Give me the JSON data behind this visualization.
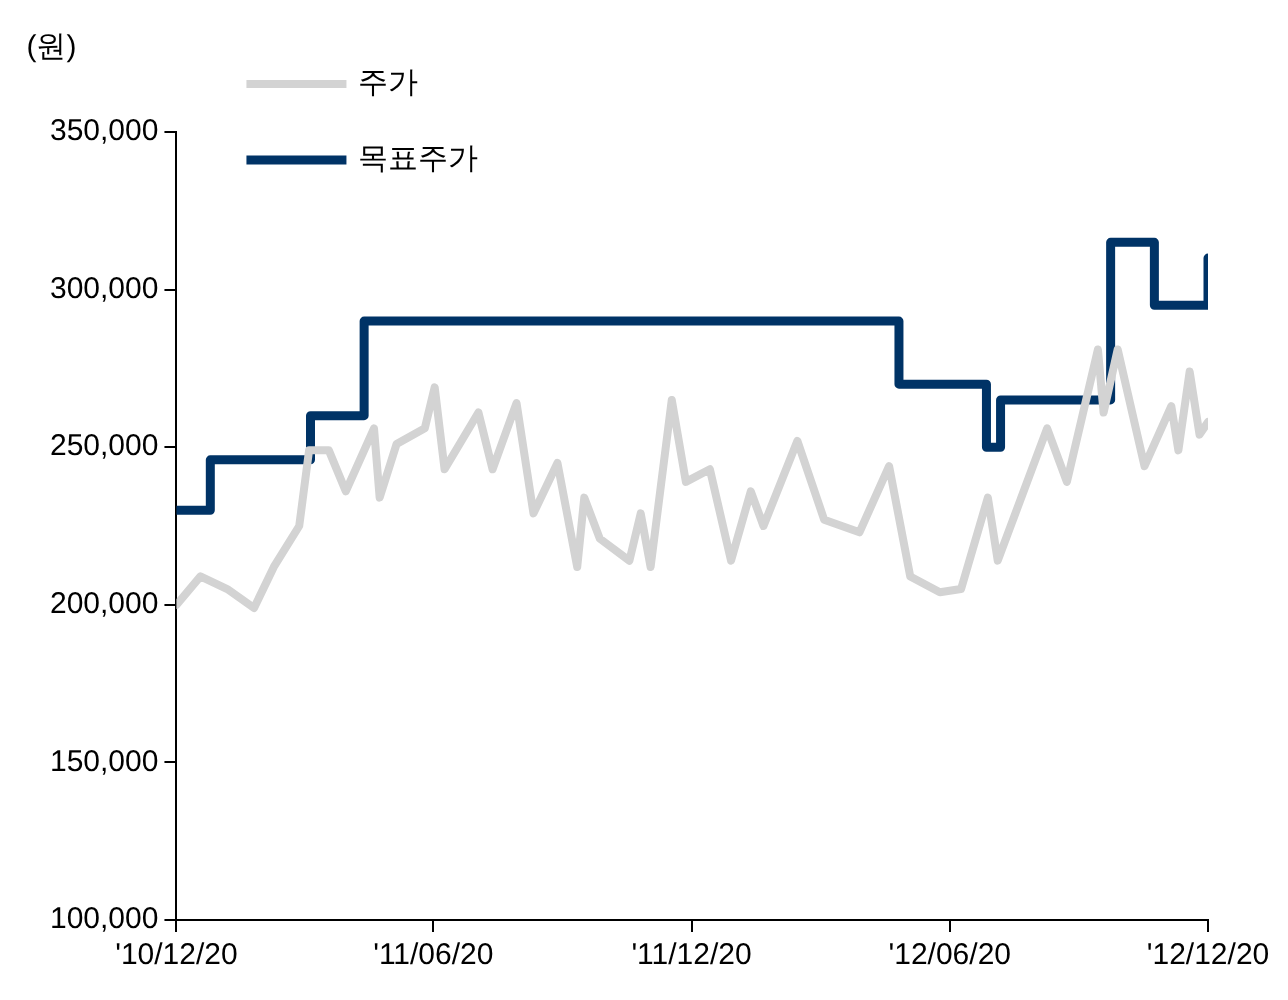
{
  "chart_data": {
    "type": "line",
    "ylabel": "(원)",
    "legend": "top left",
    "grid": false,
    "marker": "none",
    "line_style": "solid",
    "xlim": [
      "2010-12-20",
      "2012-12-20"
    ],
    "xticks": [
      {
        "value": "2010-12-20",
        "label": "'10/12/20"
      },
      {
        "value": "2011-06-20",
        "label": "'11/06/20"
      },
      {
        "value": "2011-12-20",
        "label": "'11/12/20"
      },
      {
        "value": "2012-06-20",
        "label": "'12/06/20"
      },
      {
        "value": "2012-12-20",
        "label": "'12/12/20"
      }
    ],
    "ylim": [
      100000,
      350000
    ],
    "yticks": [
      {
        "value": 100000,
        "label": "100,000"
      },
      {
        "value": 150000,
        "label": "150,000"
      },
      {
        "value": 200000,
        "label": "200,000"
      },
      {
        "value": 250000,
        "label": "250,000"
      },
      {
        "value": 300000,
        "label": "300,000"
      },
      {
        "value": 350000,
        "label": "350,000"
      }
    ],
    "series": [
      {
        "name": "주가",
        "type": "line",
        "color": "#d3d3d3",
        "x": [
          "2010-12-20",
          "2011-01-06",
          "2011-01-25",
          "2011-02-13",
          "2011-02-27",
          "2011-03-17",
          "2011-03-24",
          "2011-04-07",
          "2011-04-19",
          "2011-05-09",
          "2011-05-13",
          "2011-05-25",
          "2011-06-14",
          "2011-06-21",
          "2011-06-28",
          "2011-07-22",
          "2011-08-01",
          "2011-08-18",
          "2011-08-30",
          "2011-09-16",
          "2011-09-30",
          "2011-10-05",
          "2011-10-16",
          "2011-11-06",
          "2011-11-14",
          "2011-11-21",
          "2011-12-06",
          "2011-12-16",
          "2012-01-02",
          "2012-01-17",
          "2012-01-31",
          "2012-02-09",
          "2012-03-04",
          "2012-03-23",
          "2012-04-17",
          "2012-05-08",
          "2012-05-23",
          "2012-06-13",
          "2012-06-28",
          "2012-07-17",
          "2012-07-24",
          "2012-08-28",
          "2012-09-11",
          "2012-10-03",
          "2012-10-07",
          "2012-10-17",
          "2012-11-05",
          "2012-11-24",
          "2012-11-29",
          "2012-12-07",
          "2012-12-14",
          "2012-12-20"
        ],
        "values": [
          200000,
          209000,
          205000,
          199000,
          212000,
          225000,
          249000,
          249000,
          236000,
          256000,
          234000,
          251000,
          256000,
          269000,
          243000,
          261000,
          243000,
          264000,
          229000,
          245000,
          212000,
          234000,
          221000,
          214000,
          229000,
          212000,
          265000,
          239000,
          243000,
          214000,
          236000,
          225000,
          252000,
          227000,
          223000,
          244000,
          209000,
          204000,
          205000,
          234000,
          214000,
          256000,
          239000,
          281000,
          261000,
          281000,
          244000,
          263000,
          249000,
          274000,
          254000,
          258000
        ]
      },
      {
        "name": "목표주가",
        "type": "step",
        "color": "#003366",
        "x": [
          "2010-12-20",
          "2011-01-13",
          "2011-03-25",
          "2011-05-02",
          "2012-05-15",
          "2012-07-16",
          "2012-07-26",
          "2012-10-12",
          "2012-11-12",
          "2012-12-20"
        ],
        "values": [
          230000,
          246000,
          260000,
          290000,
          270000,
          250000,
          265000,
          315000,
          295000,
          310000
        ]
      }
    ]
  }
}
